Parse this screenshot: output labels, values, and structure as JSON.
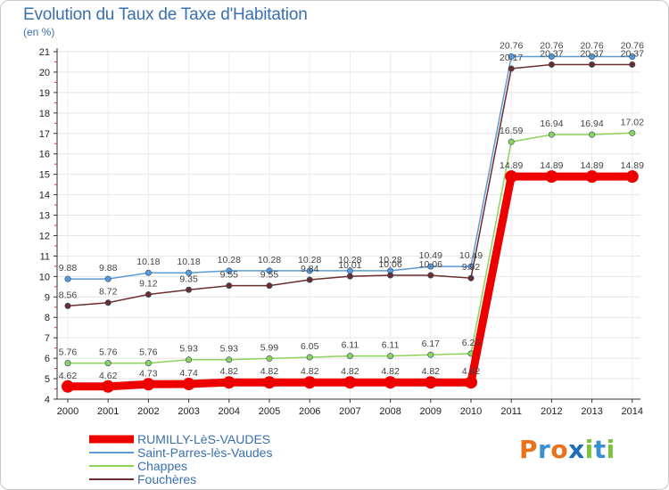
{
  "title": "Evolution du Taux de Taxe d'Habitation",
  "unit": "(en %)",
  "logo": {
    "text": "Proxiti",
    "letters": [
      "P",
      "r",
      "o",
      "x",
      "i",
      "t",
      "i"
    ],
    "colors": [
      "#e8731c",
      "#3a8fd0",
      "#e8731c",
      "#1c6fb6",
      "#7cc33d",
      "#3a8fd0",
      "#7cc33d"
    ]
  },
  "chart_data": {
    "type": "line",
    "categories": [
      "2000",
      "2001",
      "2002",
      "2003",
      "2004",
      "2005",
      "2006",
      "2007",
      "2008",
      "2009",
      "2010",
      "2011",
      "2012",
      "2013",
      "2014"
    ],
    "ylim": [
      4,
      21
    ],
    "yticks": [
      4,
      5,
      6,
      7,
      8,
      9,
      10,
      11,
      12,
      13,
      14,
      15,
      16,
      17,
      18,
      19,
      20,
      21
    ],
    "grid": true,
    "legend_position": "bottom-left",
    "series": [
      {
        "name": "Saint-Parres-lès-Vaudes",
        "color": "#5b9bd5",
        "values": [
          9.88,
          9.88,
          10.18,
          10.18,
          10.28,
          10.28,
          10.28,
          10.28,
          10.28,
          10.49,
          10.49,
          20.76,
          20.76,
          20.76,
          20.76
        ],
        "labels": [
          "9.88",
          "9.88",
          "10.18",
          "10.18",
          "10.28",
          "10.28",
          "10.28",
          "10.28",
          "10.28",
          "10.49",
          "10.49",
          "20.76",
          "20.76",
          "20.76",
          "20.76"
        ]
      },
      {
        "name": "Fouchères",
        "color": "#6b2d2d",
        "values": [
          8.56,
          8.72,
          9.12,
          9.35,
          9.55,
          9.55,
          9.84,
          10.01,
          10.06,
          10.06,
          9.92,
          20.17,
          20.37,
          20.37,
          20.37
        ],
        "labels": [
          "8.56",
          "8.72",
          "9.12",
          "9.35",
          "9.55",
          "9.55",
          "9.84",
          "10.01",
          "10.06",
          "10.06",
          "9.92",
          "20.17",
          "20.37",
          "20.37",
          "20.37"
        ]
      },
      {
        "name": "Chappes",
        "color": "#8fd25a",
        "values": [
          5.76,
          5.76,
          5.76,
          5.93,
          5.93,
          5.99,
          6.05,
          6.11,
          6.11,
          6.17,
          6.23,
          16.59,
          16.94,
          16.94,
          17.02
        ],
        "labels": [
          "5.76",
          "5.76",
          "5.76",
          "5.93",
          "5.93",
          "5.99",
          "6.05",
          "6.11",
          "6.11",
          "6.17",
          "6.23",
          "16.59",
          "16.94",
          "16.94",
          "17.02"
        ]
      },
      {
        "name": "RUMILLY-LèS-VAUDES",
        "color": "#ee0000",
        "values": [
          4.62,
          4.62,
          4.73,
          4.74,
          4.82,
          4.82,
          4.82,
          4.82,
          4.82,
          4.82,
          4.82,
          14.89,
          14.89,
          14.89,
          14.89
        ],
        "labels": [
          "4.62",
          "4.62",
          "4.73",
          "4.74",
          "4.82",
          "4.82",
          "4.82",
          "4.82",
          "4.82",
          "4.82",
          "4.82",
          "14.89",
          "14.89",
          "14.89",
          "14.89"
        ]
      }
    ],
    "legend": [
      "RUMILLY-LèS-VAUDES",
      "Saint-Parres-lès-Vaudes",
      "Chappes",
      "Fouchères"
    ]
  }
}
